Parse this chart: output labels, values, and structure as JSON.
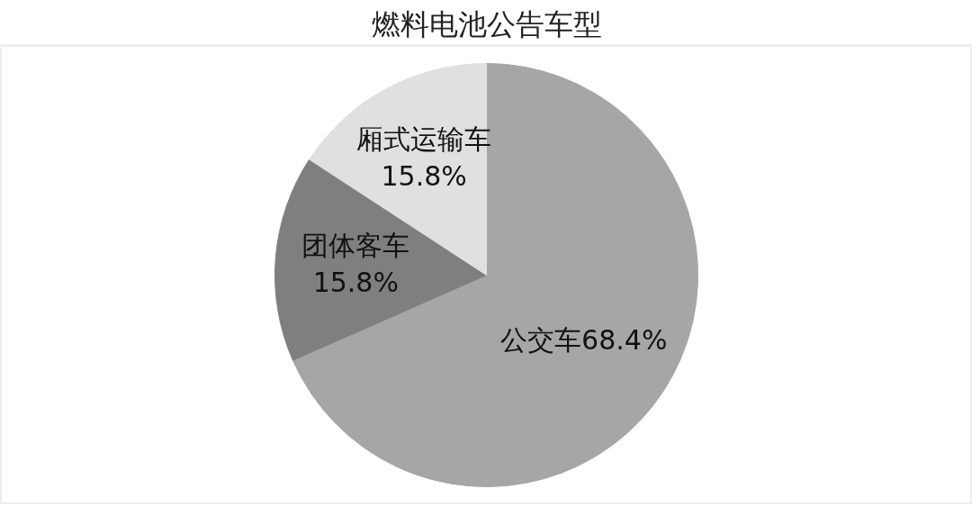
{
  "chart_data": {
    "type": "pie",
    "title": "燃料电池公告车型",
    "categories": [
      "公交车",
      "团体客车",
      "厢式运输车"
    ],
    "values": [
      68.4,
      15.8,
      15.8
    ],
    "value_labels": [
      "68.4%",
      "15.8%",
      "15.8%"
    ],
    "colors": [
      "#a6a6a6",
      "#7f7f7f",
      "#e0e0e0"
    ]
  }
}
